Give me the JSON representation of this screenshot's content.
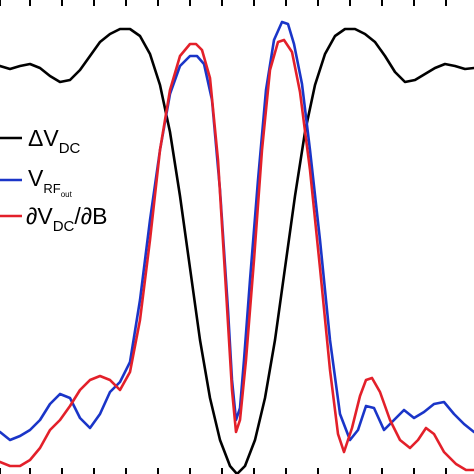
{
  "chart_data": {
    "type": "line",
    "title": "",
    "xlabel": "",
    "ylabel": "",
    "xlim": [
      0,
      474
    ],
    "ylim": [
      0,
      474
    ],
    "grid": false,
    "legend_position": "left",
    "legend": [
      {
        "id": "dvdc",
        "label": "ΔV",
        "sub": "DC",
        "subsub": "",
        "color": "#000000"
      },
      {
        "id": "vrf",
        "label": "V",
        "sub": "RF",
        "subsub": "out",
        "color": "#1a35c8"
      },
      {
        "id": "deriv",
        "label": "∂V",
        "sub": "DC",
        "tail": "/∂B",
        "color": "#e3202a"
      }
    ],
    "series": [
      {
        "id": "dvdc",
        "color": "#000000",
        "points": [
          [
            0,
            66
          ],
          [
            10,
            69
          ],
          [
            20,
            66
          ],
          [
            30,
            64
          ],
          [
            40,
            68
          ],
          [
            50,
            76
          ],
          [
            60,
            82
          ],
          [
            70,
            80
          ],
          [
            80,
            70
          ],
          [
            90,
            56
          ],
          [
            100,
            42
          ],
          [
            110,
            34
          ],
          [
            120,
            29
          ],
          [
            130,
            29
          ],
          [
            140,
            36
          ],
          [
            150,
            54
          ],
          [
            160,
            85
          ],
          [
            170,
            132
          ],
          [
            180,
            196
          ],
          [
            190,
            268
          ],
          [
            200,
            340
          ],
          [
            210,
            398
          ],
          [
            220,
            440
          ],
          [
            230,
            466
          ],
          [
            237,
            474
          ],
          [
            245,
            466
          ],
          [
            255,
            440
          ],
          [
            265,
            398
          ],
          [
            275,
            340
          ],
          [
            285,
            268
          ],
          [
            295,
            196
          ],
          [
            305,
            132
          ],
          [
            315,
            85
          ],
          [
            325,
            54
          ],
          [
            335,
            36
          ],
          [
            345,
            29
          ],
          [
            355,
            29
          ],
          [
            365,
            34
          ],
          [
            375,
            42
          ],
          [
            385,
            56
          ],
          [
            395,
            72
          ],
          [
            405,
            82
          ],
          [
            415,
            80
          ],
          [
            425,
            74
          ],
          [
            435,
            68
          ],
          [
            445,
            64
          ],
          [
            455,
            66
          ],
          [
            465,
            69
          ],
          [
            474,
            68
          ]
        ]
      },
      {
        "id": "vrf",
        "color": "#1a35c8",
        "points": [
          [
            0,
            432
          ],
          [
            10,
            440
          ],
          [
            20,
            436
          ],
          [
            30,
            430
          ],
          [
            40,
            420
          ],
          [
            50,
            404
          ],
          [
            60,
            394
          ],
          [
            70,
            398
          ],
          [
            80,
            418
          ],
          [
            90,
            428
          ],
          [
            100,
            414
          ],
          [
            110,
            392
          ],
          [
            120,
            382
          ],
          [
            130,
            362
          ],
          [
            140,
            300
          ],
          [
            150,
            220
          ],
          [
            160,
            150
          ],
          [
            170,
            94
          ],
          [
            180,
            66
          ],
          [
            190,
            56
          ],
          [
            197,
            56
          ],
          [
            204,
            64
          ],
          [
            212,
            100
          ],
          [
            220,
            190
          ],
          [
            228,
            310
          ],
          [
            232,
            380
          ],
          [
            236,
            420
          ],
          [
            240,
            408
          ],
          [
            244,
            360
          ],
          [
            250,
            280
          ],
          [
            258,
            180
          ],
          [
            266,
            90
          ],
          [
            274,
            40
          ],
          [
            282,
            22
          ],
          [
            288,
            24
          ],
          [
            294,
            44
          ],
          [
            302,
            84
          ],
          [
            310,
            150
          ],
          [
            320,
            240
          ],
          [
            330,
            340
          ],
          [
            340,
            414
          ],
          [
            350,
            440
          ],
          [
            358,
            430
          ],
          [
            366,
            406
          ],
          [
            374,
            408
          ],
          [
            384,
            430
          ],
          [
            394,
            420
          ],
          [
            404,
            410
          ],
          [
            414,
            418
          ],
          [
            424,
            412
          ],
          [
            434,
            404
          ],
          [
            444,
            402
          ],
          [
            454,
            414
          ],
          [
            464,
            424
          ],
          [
            474,
            432
          ]
        ]
      },
      {
        "id": "deriv",
        "color": "#e3202a",
        "points": [
          [
            0,
            462
          ],
          [
            10,
            466
          ],
          [
            20,
            466
          ],
          [
            30,
            460
          ],
          [
            40,
            448
          ],
          [
            50,
            430
          ],
          [
            60,
            420
          ],
          [
            70,
            406
          ],
          [
            80,
            390
          ],
          [
            90,
            380
          ],
          [
            100,
            376
          ],
          [
            110,
            380
          ],
          [
            120,
            390
          ],
          [
            130,
            372
          ],
          [
            140,
            320
          ],
          [
            150,
            240
          ],
          [
            160,
            150
          ],
          [
            170,
            90
          ],
          [
            180,
            56
          ],
          [
            190,
            44
          ],
          [
            196,
            44
          ],
          [
            202,
            50
          ],
          [
            210,
            78
          ],
          [
            218,
            160
          ],
          [
            226,
            290
          ],
          [
            232,
            390
          ],
          [
            236,
            432
          ],
          [
            240,
            420
          ],
          [
            246,
            360
          ],
          [
            254,
            260
          ],
          [
            262,
            150
          ],
          [
            270,
            70
          ],
          [
            278,
            42
          ],
          [
            284,
            40
          ],
          [
            292,
            52
          ],
          [
            300,
            92
          ],
          [
            310,
            170
          ],
          [
            320,
            268
          ],
          [
            330,
            370
          ],
          [
            338,
            434
          ],
          [
            344,
            452
          ],
          [
            352,
            428
          ],
          [
            360,
            396
          ],
          [
            366,
            380
          ],
          [
            372,
            378
          ],
          [
            380,
            392
          ],
          [
            390,
            420
          ],
          [
            400,
            440
          ],
          [
            410,
            448
          ],
          [
            418,
            440
          ],
          [
            426,
            428
          ],
          [
            434,
            434
          ],
          [
            444,
            452
          ],
          [
            456,
            464
          ],
          [
            466,
            470
          ],
          [
            474,
            470
          ]
        ]
      }
    ],
    "ticks": {
      "top": [
        0,
        30,
        62,
        94,
        126,
        158,
        190,
        222,
        254,
        286,
        318,
        350,
        382,
        414,
        446
      ],
      "bottom": [
        0,
        30,
        62,
        94,
        126,
        158,
        190,
        222,
        254,
        286,
        318,
        350,
        382,
        414,
        446
      ]
    }
  }
}
